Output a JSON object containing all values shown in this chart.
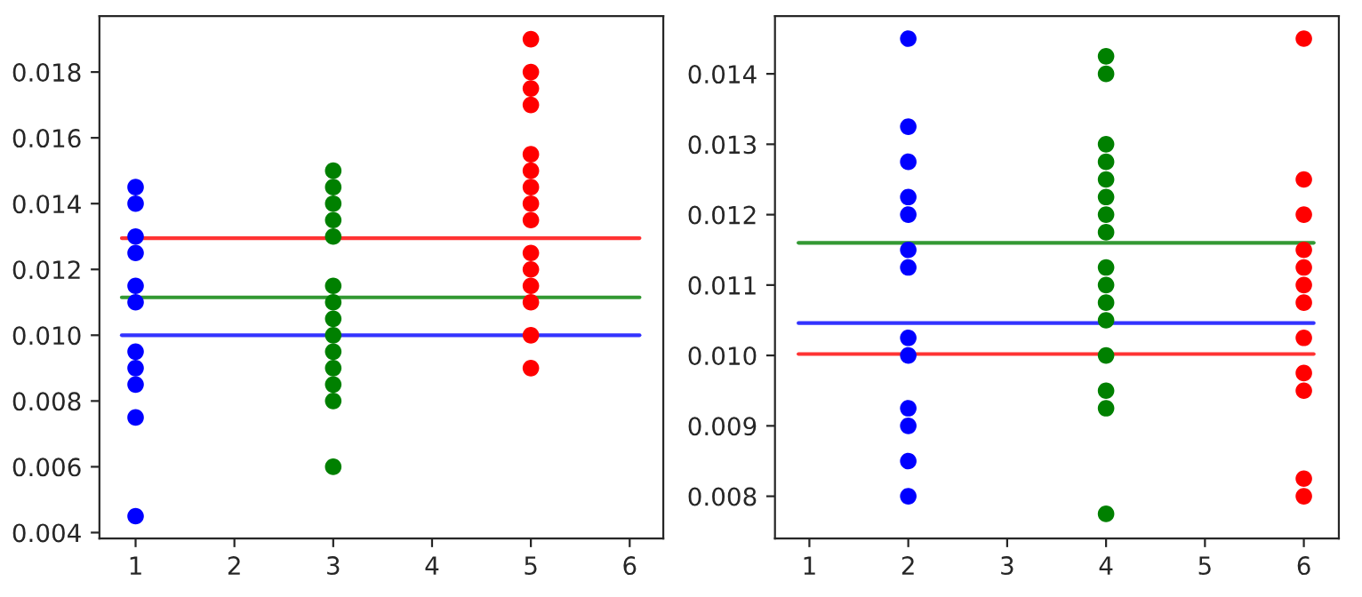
{
  "chart_data": [
    {
      "type": "scatter",
      "xlim": [
        0.634,
        6.34
      ],
      "xticks": [
        1,
        2,
        3,
        4,
        5,
        6
      ],
      "ylim": [
        0.00382,
        0.0197
      ],
      "yticks": [
        {
          "value": 0.004,
          "label": "0.004"
        },
        {
          "value": 0.006,
          "label": "0.006"
        },
        {
          "value": 0.008,
          "label": "0.008"
        },
        {
          "value": 0.01,
          "label": "0.010"
        },
        {
          "value": 0.012,
          "label": "0.012"
        },
        {
          "value": 0.014,
          "label": "0.014"
        },
        {
          "value": 0.016,
          "label": "0.016"
        },
        {
          "value": 0.018,
          "label": "0.018"
        }
      ],
      "grid": false,
      "legend": false,
      "series": [
        {
          "color": "#0000ff",
          "marker": "circle",
          "x": [
            1,
            1,
            1,
            1,
            1,
            1,
            1,
            1,
            1,
            1,
            1
          ],
          "values": [
            0.0145,
            0.014,
            0.013,
            0.0125,
            0.0115,
            0.011,
            0.0095,
            0.009,
            0.0085,
            0.0075,
            0.0045
          ]
        },
        {
          "color": "#008000",
          "marker": "circle",
          "x": [
            3,
            3,
            3,
            3,
            3,
            3,
            3,
            3,
            3,
            3,
            3,
            3,
            3,
            3
          ],
          "values": [
            0.015,
            0.0145,
            0.014,
            0.0135,
            0.013,
            0.0115,
            0.011,
            0.0105,
            0.01,
            0.0095,
            0.009,
            0.0085,
            0.008,
            0.006
          ]
        },
        {
          "color": "#ff0000",
          "marker": "circle",
          "x": [
            5,
            5,
            5,
            5,
            5,
            5,
            5,
            5,
            5,
            5,
            5,
            5,
            5,
            5,
            5
          ],
          "values": [
            0.019,
            0.018,
            0.0175,
            0.017,
            0.0155,
            0.015,
            0.0145,
            0.014,
            0.0135,
            0.0125,
            0.012,
            0.0115,
            0.011,
            0.01,
            0.009
          ]
        },
        {
          "type": "line",
          "color": "#ff0000",
          "x": [
            0.86,
            6.1
          ],
          "values": [
            0.01295,
            0.01295
          ]
        },
        {
          "type": "line",
          "color": "#008000",
          "x": [
            0.86,
            6.1
          ],
          "values": [
            0.01115,
            0.01115
          ]
        },
        {
          "type": "line",
          "color": "#0000ff",
          "x": [
            0.86,
            6.1
          ],
          "values": [
            0.01,
            0.01
          ]
        }
      ]
    },
    {
      "type": "scatter",
      "xlim": [
        0.652,
        6.354
      ],
      "xticks": [
        1,
        2,
        3,
        4,
        5,
        6
      ],
      "ylim": [
        0.0074,
        0.01482
      ],
      "yticks": [
        {
          "value": 0.008,
          "label": "0.008"
        },
        {
          "value": 0.009,
          "label": "0.009"
        },
        {
          "value": 0.01,
          "label": "0.010"
        },
        {
          "value": 0.011,
          "label": "0.011"
        },
        {
          "value": 0.012,
          "label": "0.012"
        },
        {
          "value": 0.013,
          "label": "0.013"
        },
        {
          "value": 0.014,
          "label": "0.014"
        }
      ],
      "grid": false,
      "legend": false,
      "series": [
        {
          "color": "#0000ff",
          "marker": "circle",
          "x": [
            2,
            2,
            2,
            2,
            2,
            2,
            2,
            2,
            2,
            2,
            2,
            2,
            2
          ],
          "values": [
            0.0145,
            0.01325,
            0.01275,
            0.01225,
            0.012,
            0.0115,
            0.01125,
            0.01025,
            0.01,
            0.00925,
            0.009,
            0.0085,
            0.008
          ]
        },
        {
          "color": "#008000",
          "marker": "circle",
          "x": [
            4,
            4,
            4,
            4,
            4,
            4,
            4,
            4,
            4,
            4,
            4,
            4,
            4,
            4,
            4,
            4
          ],
          "values": [
            0.01425,
            0.014,
            0.013,
            0.01275,
            0.0125,
            0.01225,
            0.012,
            0.01175,
            0.01125,
            0.011,
            0.01075,
            0.0105,
            0.01,
            0.0095,
            0.00925,
            0.00775
          ]
        },
        {
          "color": "#ff0000",
          "marker": "circle",
          "x": [
            6,
            6,
            6,
            6,
            6,
            6,
            6,
            6,
            6,
            6,
            6,
            6
          ],
          "values": [
            0.0145,
            0.0125,
            0.012,
            0.0115,
            0.01125,
            0.011,
            0.01075,
            0.01025,
            0.00975,
            0.0095,
            0.00825,
            0.008
          ]
        },
        {
          "type": "line",
          "color": "#008000",
          "x": [
            0.89,
            6.1
          ],
          "values": [
            0.0116,
            0.0116
          ]
        },
        {
          "type": "line",
          "color": "#0000ff",
          "x": [
            0.89,
            6.1
          ],
          "values": [
            0.01046,
            0.01046
          ]
        },
        {
          "type": "line",
          "color": "#ff0000",
          "x": [
            0.89,
            6.1
          ],
          "values": [
            0.01002,
            0.01002
          ]
        }
      ]
    }
  ]
}
